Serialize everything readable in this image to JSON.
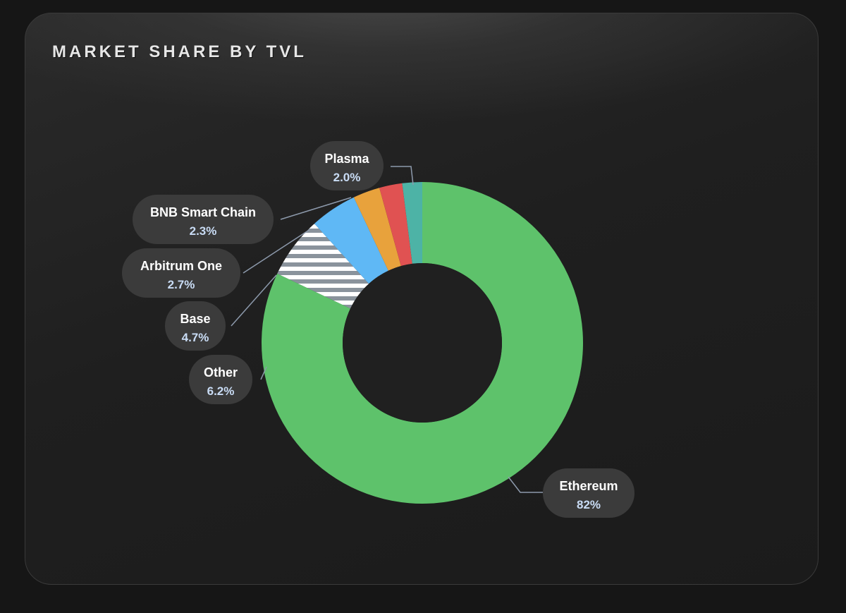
{
  "chart_data": {
    "type": "pie",
    "title": "MARKET SHARE BY TVL",
    "donut": true,
    "slices": [
      {
        "label": "Ethereum",
        "value": 82,
        "value_label": "82%",
        "color": "#5ec26b",
        "pattern": "none"
      },
      {
        "label": "Other",
        "value": 6.2,
        "value_label": "6.2%",
        "color": "#8a939c",
        "pattern": "stripes"
      },
      {
        "label": "Base",
        "value": 4.7,
        "value_label": "4.7%",
        "color": "#5fb8f5",
        "pattern": "none"
      },
      {
        "label": "Arbitrum One",
        "value": 2.7,
        "value_label": "2.7%",
        "color": "#e8a23c",
        "pattern": "none"
      },
      {
        "label": "BNB Smart Chain",
        "value": 2.3,
        "value_label": "2.3%",
        "color": "#e05252",
        "pattern": "none"
      },
      {
        "label": "Plasma",
        "value": 2.0,
        "value_label": "2.0%",
        "color": "#4db3a6",
        "pattern": "none"
      }
    ]
  }
}
